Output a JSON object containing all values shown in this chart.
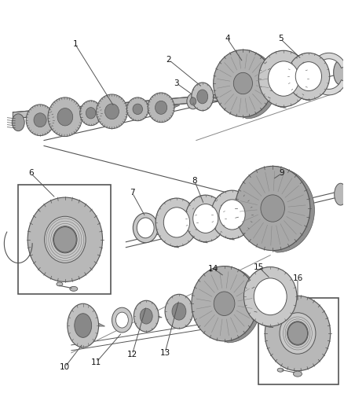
{
  "bg_color": "#ffffff",
  "line_color": "#555555",
  "label_color": "#111111",
  "label_fontsize": 7.5,
  "shaft_color": "#c8c8c8",
  "gear_color": "#b8b8b8",
  "ring_color": "#d0d0d0",
  "dark_gray": "#888888",
  "mid_gray": "#aaaaaa"
}
